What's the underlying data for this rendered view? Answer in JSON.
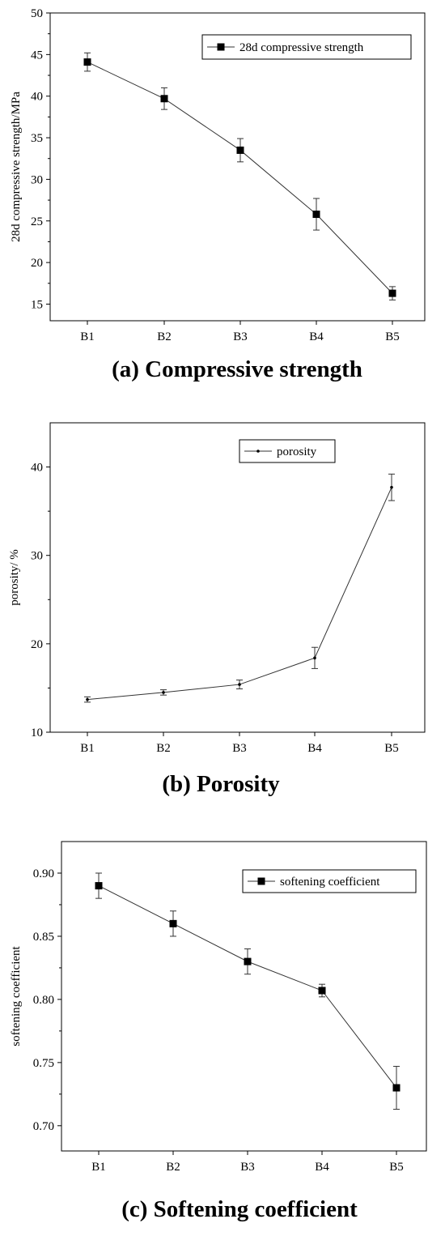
{
  "chart_data": [
    {
      "type": "line",
      "caption": "(a) Compressive strength",
      "categories": [
        "B1",
        "B2",
        "B3",
        "B4",
        "B5"
      ],
      "series": [
        {
          "name": "28d compressive strength",
          "values": [
            44.1,
            39.7,
            33.5,
            25.8,
            16.3
          ],
          "errors": [
            1.1,
            1.3,
            1.4,
            1.9,
            0.8
          ],
          "marker": "square"
        }
      ],
      "xlabel": "",
      "ylabel": "28d compressive strength/MPa",
      "ylim": [
        13,
        50
      ],
      "yticks": [
        15,
        20,
        25,
        30,
        35,
        40,
        45,
        50
      ],
      "legend_position": "top-right",
      "grid": false
    },
    {
      "type": "line",
      "caption": "(b) Porosity",
      "categories": [
        "B1",
        "B2",
        "B3",
        "B4",
        "B5"
      ],
      "series": [
        {
          "name": "porosity",
          "values": [
            13.7,
            14.5,
            15.4,
            18.4,
            37.7
          ],
          "errors": [
            0.3,
            0.3,
            0.5,
            1.2,
            1.5
          ],
          "marker": "dot"
        }
      ],
      "xlabel": "",
      "ylabel": "porosity/ %",
      "ylim": [
        10,
        45
      ],
      "yticks": [
        10,
        20,
        30,
        40
      ],
      "legend_position": "top-right",
      "grid": false
    },
    {
      "type": "line",
      "caption": "(c) Softening coefficient",
      "categories": [
        "B1",
        "B2",
        "B3",
        "B4",
        "B5"
      ],
      "series": [
        {
          "name": "softening coefficient",
          "values": [
            0.89,
            0.86,
            0.83,
            0.807,
            0.73
          ],
          "errors": [
            0.01,
            0.01,
            0.01,
            0.005,
            0.017
          ],
          "marker": "square"
        }
      ],
      "xlabel": "",
      "ylabel": "softening coefficient",
      "ylim": [
        0.68,
        0.925
      ],
      "yticks": [
        0.7,
        0.75,
        0.8,
        0.85,
        0.9
      ],
      "ytick_labels": [
        "0.70",
        "0.75",
        "0.80",
        "0.85",
        "0.90"
      ],
      "legend_position": "top-right",
      "grid": false
    }
  ]
}
